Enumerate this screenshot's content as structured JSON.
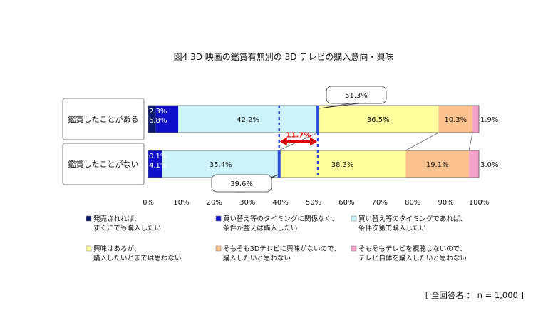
{
  "chart_data": {
    "type": "bar",
    "orientation": "horizontal",
    "stacked": true,
    "percent": true,
    "title": "図4 3D 映画の鑑賞有無別の 3D テレビの購入意向・興味",
    "categories": [
      "鑑賞したことがある",
      "鑑賞したことがない"
    ],
    "xlim": [
      0,
      100
    ],
    "ticks": [
      "0%",
      "10%",
      "20%",
      "30%",
      "40%",
      "50%",
      "60%",
      "70%",
      "80%",
      "90%",
      "100%"
    ],
    "grid": false,
    "legend_position": "bottom",
    "series": [
      {
        "name": "発売されれば、すぐにでも購入したい",
        "legend_lines": [
          "発売されれば、",
          "すぐにでも購入したい"
        ],
        "color": "#0b1a6e",
        "values": [
          2.3,
          0.1
        ],
        "labels": [
          "2.3%",
          "0.1%"
        ]
      },
      {
        "name": "買い替え等のタイミングに関係なく、条件が整えば購入したい",
        "legend_lines": [
          "買い替え等のタイミングに関係なく、",
          "条件が整えば購入したい"
        ],
        "color": "#1010c8",
        "values": [
          6.8,
          4.1
        ],
        "labels": [
          "6.8%",
          "4.1%"
        ]
      },
      {
        "name": "買い替え等のタイミングであれば、条件次第で購入したい",
        "legend_lines": [
          "買い替え等のタイミングであれば、",
          "条件次第で購入したい"
        ],
        "color": "#ccf4fa",
        "values": [
          42.2,
          35.4
        ],
        "labels": [
          "42.2%",
          "35.4%"
        ]
      },
      {
        "name": "興味はあるが、購入したいとまでは思わない",
        "legend_lines": [
          "興味はあるが、",
          "購入したいとまでは思わない"
        ],
        "color": "#ffff9e",
        "values": [
          36.5,
          38.3
        ],
        "labels": [
          "36.5%",
          "38.3%"
        ]
      },
      {
        "name": "そもそも3Dテレビに興味がないので、購入したいと思わない",
        "legend_lines": [
          "そもそも3Dテレビに興味がないので、",
          "購入したいと思わない"
        ],
        "color": "#f9c28e",
        "values": [
          10.3,
          19.1
        ],
        "labels": [
          "10.3%",
          "19.1%"
        ]
      },
      {
        "name": "そもそもテレビを視聴しないので、テレビ自体を購入したいと思わない",
        "legend_lines": [
          "そもそもテレビを視聴しないので、",
          "テレビ自体を購入したいと思わない"
        ],
        "color": "#f5a3c9",
        "values": [
          1.9,
          3.0
        ],
        "labels": [
          "1.9%",
          "3.0%"
        ]
      }
    ],
    "annotations": {
      "top_callout": {
        "value": 51.3,
        "label": "51.3%"
      },
      "bottom_callout": {
        "value": 39.6,
        "label": "39.6%"
      },
      "difference": {
        "label": "11.7%",
        "color": "#e00000"
      }
    },
    "footnote": "[ 全回答者 ： n = 1,000 ]"
  }
}
